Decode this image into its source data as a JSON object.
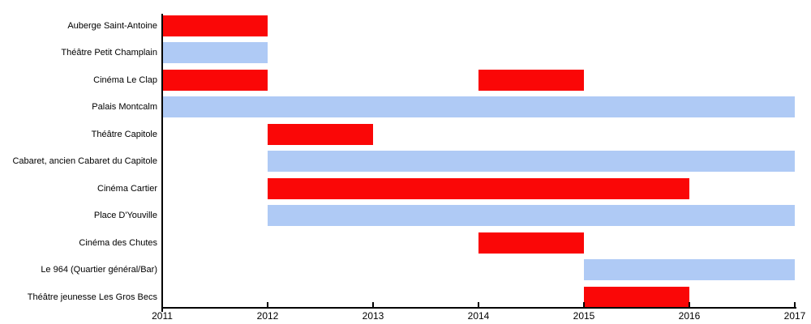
{
  "chart_data": {
    "type": "bar",
    "subtype": "gantt-timeline",
    "orientation": "horizontal",
    "grid": false,
    "legend": "none",
    "x_axis": {
      "min": 2011,
      "max": 2017,
      "ticks": [
        2011,
        2012,
        2013,
        2014,
        2015,
        2016,
        2017
      ]
    },
    "colors": {
      "red": "#FA0707",
      "blue": "#AFCAF5"
    },
    "rows": [
      {
        "label": "Auberge Saint-Antoine",
        "segments": [
          {
            "start": 2011,
            "end": 2012,
            "color": "red"
          }
        ]
      },
      {
        "label": "Théâtre Petit Champlain",
        "segments": [
          {
            "start": 2011,
            "end": 2012,
            "color": "blue"
          }
        ]
      },
      {
        "label": "Cinéma Le Clap",
        "segments": [
          {
            "start": 2011,
            "end": 2012,
            "color": "red"
          },
          {
            "start": 2014,
            "end": 2015,
            "color": "red"
          }
        ]
      },
      {
        "label": "Palais Montcalm",
        "segments": [
          {
            "start": 2011,
            "end": 2017,
            "color": "blue"
          }
        ]
      },
      {
        "label": "Théâtre Capitole",
        "segments": [
          {
            "start": 2012,
            "end": 2013,
            "color": "red"
          }
        ]
      },
      {
        "label": "Cabaret, ancien Cabaret du Capitole",
        "segments": [
          {
            "start": 2012,
            "end": 2017,
            "color": "blue"
          }
        ]
      },
      {
        "label": "Cinéma Cartier",
        "segments": [
          {
            "start": 2012,
            "end": 2016,
            "color": "red"
          }
        ]
      },
      {
        "label": "Place D'Youville",
        "segments": [
          {
            "start": 2012,
            "end": 2017,
            "color": "blue"
          }
        ]
      },
      {
        "label": "Cinéma des Chutes",
        "segments": [
          {
            "start": 2014,
            "end": 2015,
            "color": "red"
          }
        ]
      },
      {
        "label": "Le 964 (Quartier général/Bar)",
        "segments": [
          {
            "start": 2015,
            "end": 2017,
            "color": "blue"
          }
        ]
      },
      {
        "label": "Théâtre jeunesse Les Gros Becs",
        "segments": [
          {
            "start": 2015,
            "end": 2016,
            "color": "red"
          }
        ]
      }
    ]
  }
}
